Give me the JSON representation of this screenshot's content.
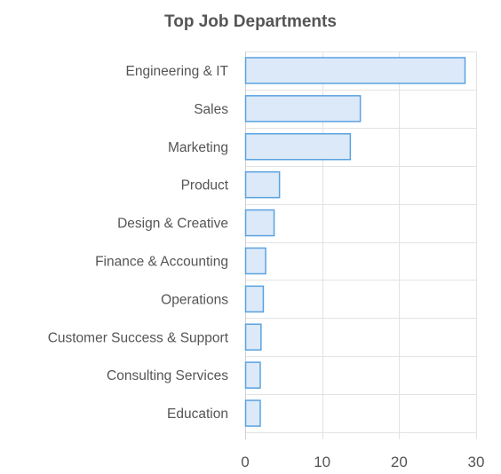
{
  "chart_data": {
    "type": "bar",
    "orientation": "horizontal",
    "title": "Top Job Departments",
    "categories": [
      "Engineering & IT",
      "Sales",
      "Marketing",
      "Product",
      "Design & Creative",
      "Finance & Accounting",
      "Operations",
      "Customer Success & Support",
      "Consulting Services",
      "Education"
    ],
    "values": [
      28.5,
      14.9,
      13.6,
      4.4,
      3.7,
      2.6,
      2.3,
      2.0,
      1.9,
      1.9
    ],
    "xticks": [
      "0",
      "10",
      "20",
      "30"
    ],
    "xlim": [
      0,
      30
    ],
    "grid": true,
    "legend": "none",
    "colors": {
      "bar_fill": "#dce9f9",
      "bar_stroke": "#5aa2e0",
      "grid": "#e3e3e3",
      "axis": "#cfcfcf",
      "text": "#555555"
    }
  }
}
